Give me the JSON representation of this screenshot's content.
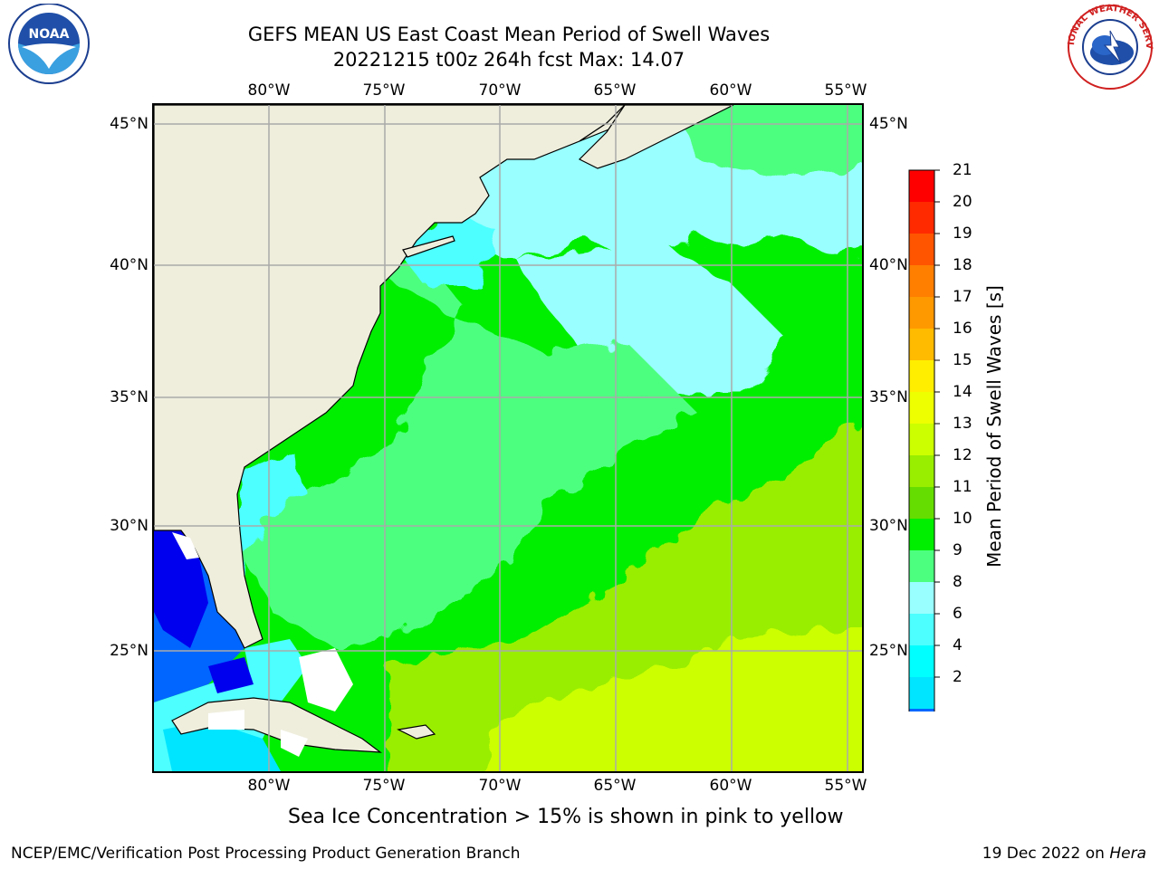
{
  "title": {
    "line1": "GEFS MEAN US East Coast Mean Period of Swell Waves",
    "line2": "20221215 t00z 264h fcst   Max: 14.07"
  },
  "logos": {
    "left": {
      "icon": "noaa-logo",
      "text": "NOAA"
    },
    "right": {
      "icon": "nws-logo",
      "text": "NATIONAL WEATHER SERVICE"
    }
  },
  "axes": {
    "lon_ticks": [
      "80°W",
      "75°W",
      "70°W",
      "65°W",
      "60°W",
      "55°W"
    ],
    "lat_ticks": [
      "45°N",
      "40°N",
      "35°N",
      "30°N",
      "25°N"
    ]
  },
  "colorbar": {
    "title": "Mean Period of Swell Waves [s]",
    "labels": [
      "21",
      "20",
      "19",
      "18",
      "17",
      "16",
      "15",
      "14",
      "13",
      "12",
      "11",
      "10",
      "9",
      "8",
      "6",
      "4",
      "2"
    ],
    "colors": [
      "#ff0000",
      "#ff2a00",
      "#ff5500",
      "#ff7f00",
      "#ff9900",
      "#ffbb00",
      "#ffee00",
      "#eeff00",
      "#ccff00",
      "#99ee00",
      "#66dd00",
      "#00ee00",
      "#4dff7f",
      "#99ffff",
      "#4dffff",
      "#00ffff",
      "#00e5ff",
      "#0066ff"
    ],
    "underflow_color": "#0000ee"
  },
  "footnote": "Sea Ice Concentration > 15% is shown in pink to yellow",
  "credit": "NCEP/EMC/Verification Post Processing Product Generation Branch",
  "date": {
    "text": "19 Dec 2022 on ",
    "machine": "Hera"
  },
  "colors": {
    "land": "#efeedd",
    "grid": "#aaaaaa"
  }
}
